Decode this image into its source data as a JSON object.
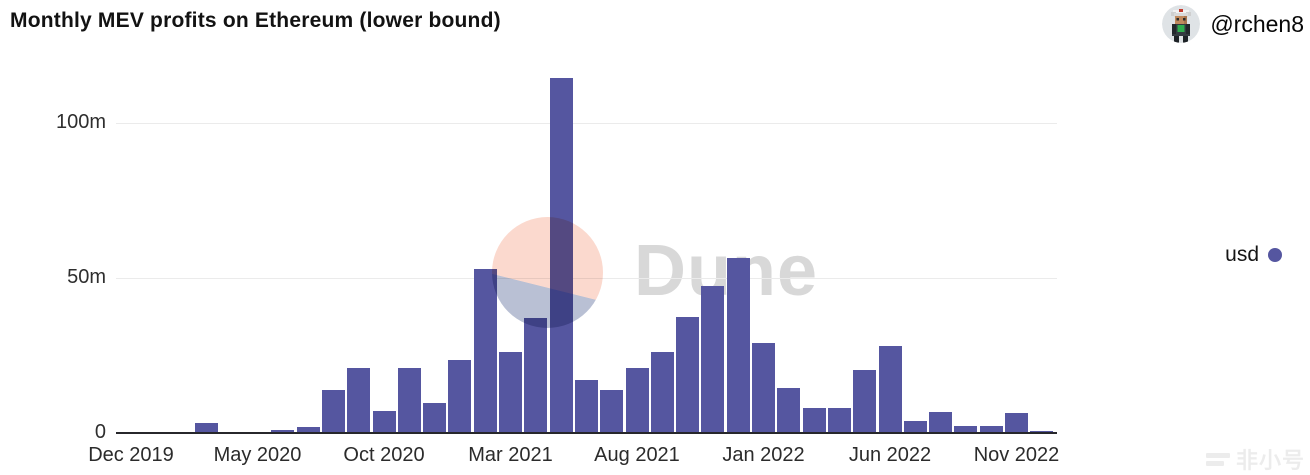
{
  "title": "Monthly MEV profits on Ethereum (lower bound)",
  "user": {
    "handle": "@rchen8",
    "avatar": "pixel-character-avatar"
  },
  "legend": {
    "label": "usd",
    "color": "#5556a0"
  },
  "watermark": {
    "brand": "Dune",
    "logo_colors": {
      "top": "#fbd9ce",
      "bottom": "#b9c0d4"
    },
    "bottom_right_text": "非小号"
  },
  "chart_data": {
    "type": "bar",
    "title": "Monthly MEV profits on Ethereum (lower bound)",
    "unit": "USD (millions)",
    "x": [
      "Dec 2019",
      "Jan 2020",
      "Feb 2020",
      "Mar 2020",
      "Apr 2020",
      "May 2020",
      "Jun 2020",
      "Jul 2020",
      "Aug 2020",
      "Sep 2020",
      "Oct 2020",
      "Nov 2020",
      "Dec 2020",
      "Jan 2021",
      "Feb 2021",
      "Mar 2021",
      "Apr 2021",
      "May 2021",
      "Jun 2021",
      "Jul 2021",
      "Aug 2021",
      "Sep 2021",
      "Oct 2021",
      "Nov 2021",
      "Dec 2021",
      "Jan 2022",
      "Feb 2022",
      "Mar 2022",
      "Apr 2022",
      "May 2022",
      "Jun 2022",
      "Jul 2022",
      "Aug 2022",
      "Sep 2022",
      "Oct 2022",
      "Nov 2022",
      "Dec 2022"
    ],
    "series": [
      {
        "name": "usd",
        "color": "#5556a0",
        "values": [
          0,
          0,
          0,
          3.2,
          0,
          0,
          1,
          2,
          14,
          21,
          7,
          21,
          9.7,
          23.5,
          53,
          26,
          37,
          114.5,
          17,
          14,
          21,
          26,
          37.5,
          47.4,
          56.5,
          29,
          14.5,
          8,
          8,
          20.3,
          28,
          4,
          6.8,
          2.3,
          2.3,
          6.5,
          0.8
        ]
      }
    ],
    "x_ticks": [
      {
        "index": 0,
        "label": "Dec 2019"
      },
      {
        "index": 5,
        "label": "May 2020"
      },
      {
        "index": 10,
        "label": "Oct 2020"
      },
      {
        "index": 15,
        "label": "Mar 2021"
      },
      {
        "index": 20,
        "label": "Aug 2021"
      },
      {
        "index": 25,
        "label": "Jan 2022"
      },
      {
        "index": 30,
        "label": "Jun 2022"
      },
      {
        "index": 35,
        "label": "Nov 2022"
      }
    ],
    "y_ticks": [
      {
        "value": 0,
        "label": "0"
      },
      {
        "value": 50,
        "label": "50m"
      },
      {
        "value": 100,
        "label": "100m"
      }
    ],
    "ylim": [
      0,
      116
    ],
    "grid": "horizontal",
    "legend_position": "right"
  }
}
